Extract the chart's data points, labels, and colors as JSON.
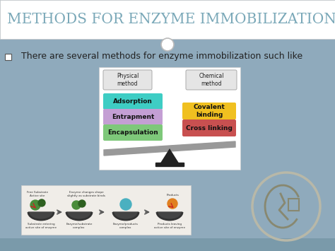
{
  "title": "METHODS FOR ENZYME IMMOBILIZATION",
  "title_color": "#7aa8b8",
  "title_fontsize": 14.5,
  "bg_color": "#8faabc",
  "header_bg": "#ffffff",
  "bullet_text": "  There are several methods for enzyme immobilization such like",
  "bullet_fontsize": 9,
  "bullet_color": "#222222",
  "diagram_bg": "#ffffff",
  "left_label": "Physical\nmethod",
  "right_label": "Chemical\nmethod",
  "left_boxes": [
    {
      "label": "Adsorption",
      "color": "#3ecdc4"
    },
    {
      "label": "Entrapment",
      "color": "#c49fd4"
    },
    {
      "label": "Encapsulation",
      "color": "#7ec87a"
    }
  ],
  "right_boxes": [
    {
      "label": "Covalent\nbinding",
      "color": "#f0c020"
    },
    {
      "label": "Cross linking",
      "color": "#c85050"
    }
  ],
  "scale_color": "#999999",
  "pivot_color": "#222222",
  "footer_bg": "#7a9aaa",
  "circle_color": "#b8b8a8"
}
